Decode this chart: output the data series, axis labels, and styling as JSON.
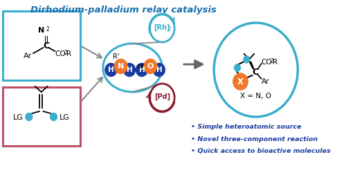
{
  "title": "Dirhodium-palladium relay catalysis",
  "title_color": "#1a6faf",
  "cyan_color": "#3aaecc",
  "pink_color": "#c0506a",
  "orange_color": "#f07828",
  "blue_color": "#1a3ca0",
  "dark_red_color": "#8b1a2e",
  "gray_color": "#888888",
  "bullet_color": "#1a3ca0",
  "bullet_points": [
    "Simple heteroatomic source",
    "Novel three-component reaction",
    "Quick access to bioactive molecules"
  ]
}
